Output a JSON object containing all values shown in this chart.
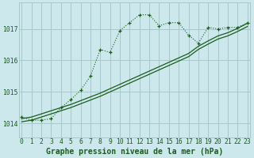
{
  "title": "Graphe pression niveau de la mer (hPa)",
  "background_color": "#cde8ec",
  "grid_color": "#a8c8cc",
  "line_color": "#1a5c1a",
  "x_ticks": [
    0,
    1,
    2,
    3,
    4,
    5,
    6,
    7,
    8,
    9,
    10,
    11,
    12,
    13,
    14,
    15,
    16,
    17,
    18,
    19,
    20,
    21,
    22,
    23
  ],
  "y_ticks": [
    1014,
    1015,
    1016,
    1017
  ],
  "ylim": [
    1013.55,
    1017.85
  ],
  "xlim": [
    -0.3,
    23.3
  ],
  "series1_x": [
    0,
    1,
    2,
    3,
    4,
    5,
    6,
    7,
    8,
    9,
    10,
    11,
    12,
    13,
    14,
    15,
    16,
    17,
    18,
    19,
    20,
    21,
    22,
    23
  ],
  "series1_y": [
    1014.2,
    1014.1,
    1014.1,
    1014.15,
    1014.5,
    1014.75,
    1015.05,
    1015.5,
    1016.35,
    1016.25,
    1016.95,
    1017.2,
    1017.45,
    1017.45,
    1017.1,
    1017.2,
    1017.2,
    1016.8,
    1016.55,
    1017.05,
    1017.0,
    1017.05,
    1017.05,
    1017.2
  ],
  "series2_x": [
    0,
    1,
    2,
    3,
    4,
    5,
    6,
    7,
    8,
    9,
    10,
    11,
    12,
    13,
    14,
    15,
    16,
    17,
    18,
    19,
    20,
    21,
    22,
    23
  ],
  "series2_y": [
    1014.15,
    1014.2,
    1014.3,
    1014.4,
    1014.5,
    1014.6,
    1014.72,
    1014.84,
    1014.96,
    1015.1,
    1015.24,
    1015.38,
    1015.52,
    1015.66,
    1015.8,
    1015.94,
    1016.08,
    1016.22,
    1016.45,
    1016.62,
    1016.78,
    1016.88,
    1017.02,
    1017.18
  ],
  "series3_x": [
    0,
    1,
    2,
    3,
    4,
    5,
    6,
    7,
    8,
    9,
    10,
    11,
    12,
    13,
    14,
    15,
    16,
    17,
    18,
    19,
    20,
    21,
    22,
    23
  ],
  "series3_y": [
    1014.05,
    1014.1,
    1014.2,
    1014.3,
    1014.4,
    1014.5,
    1014.62,
    1014.74,
    1014.86,
    1015.0,
    1015.14,
    1015.28,
    1015.42,
    1015.56,
    1015.7,
    1015.84,
    1015.98,
    1016.12,
    1016.35,
    1016.52,
    1016.68,
    1016.78,
    1016.92,
    1017.08
  ],
  "title_fontsize": 7.0,
  "tick_fontsize": 5.8
}
